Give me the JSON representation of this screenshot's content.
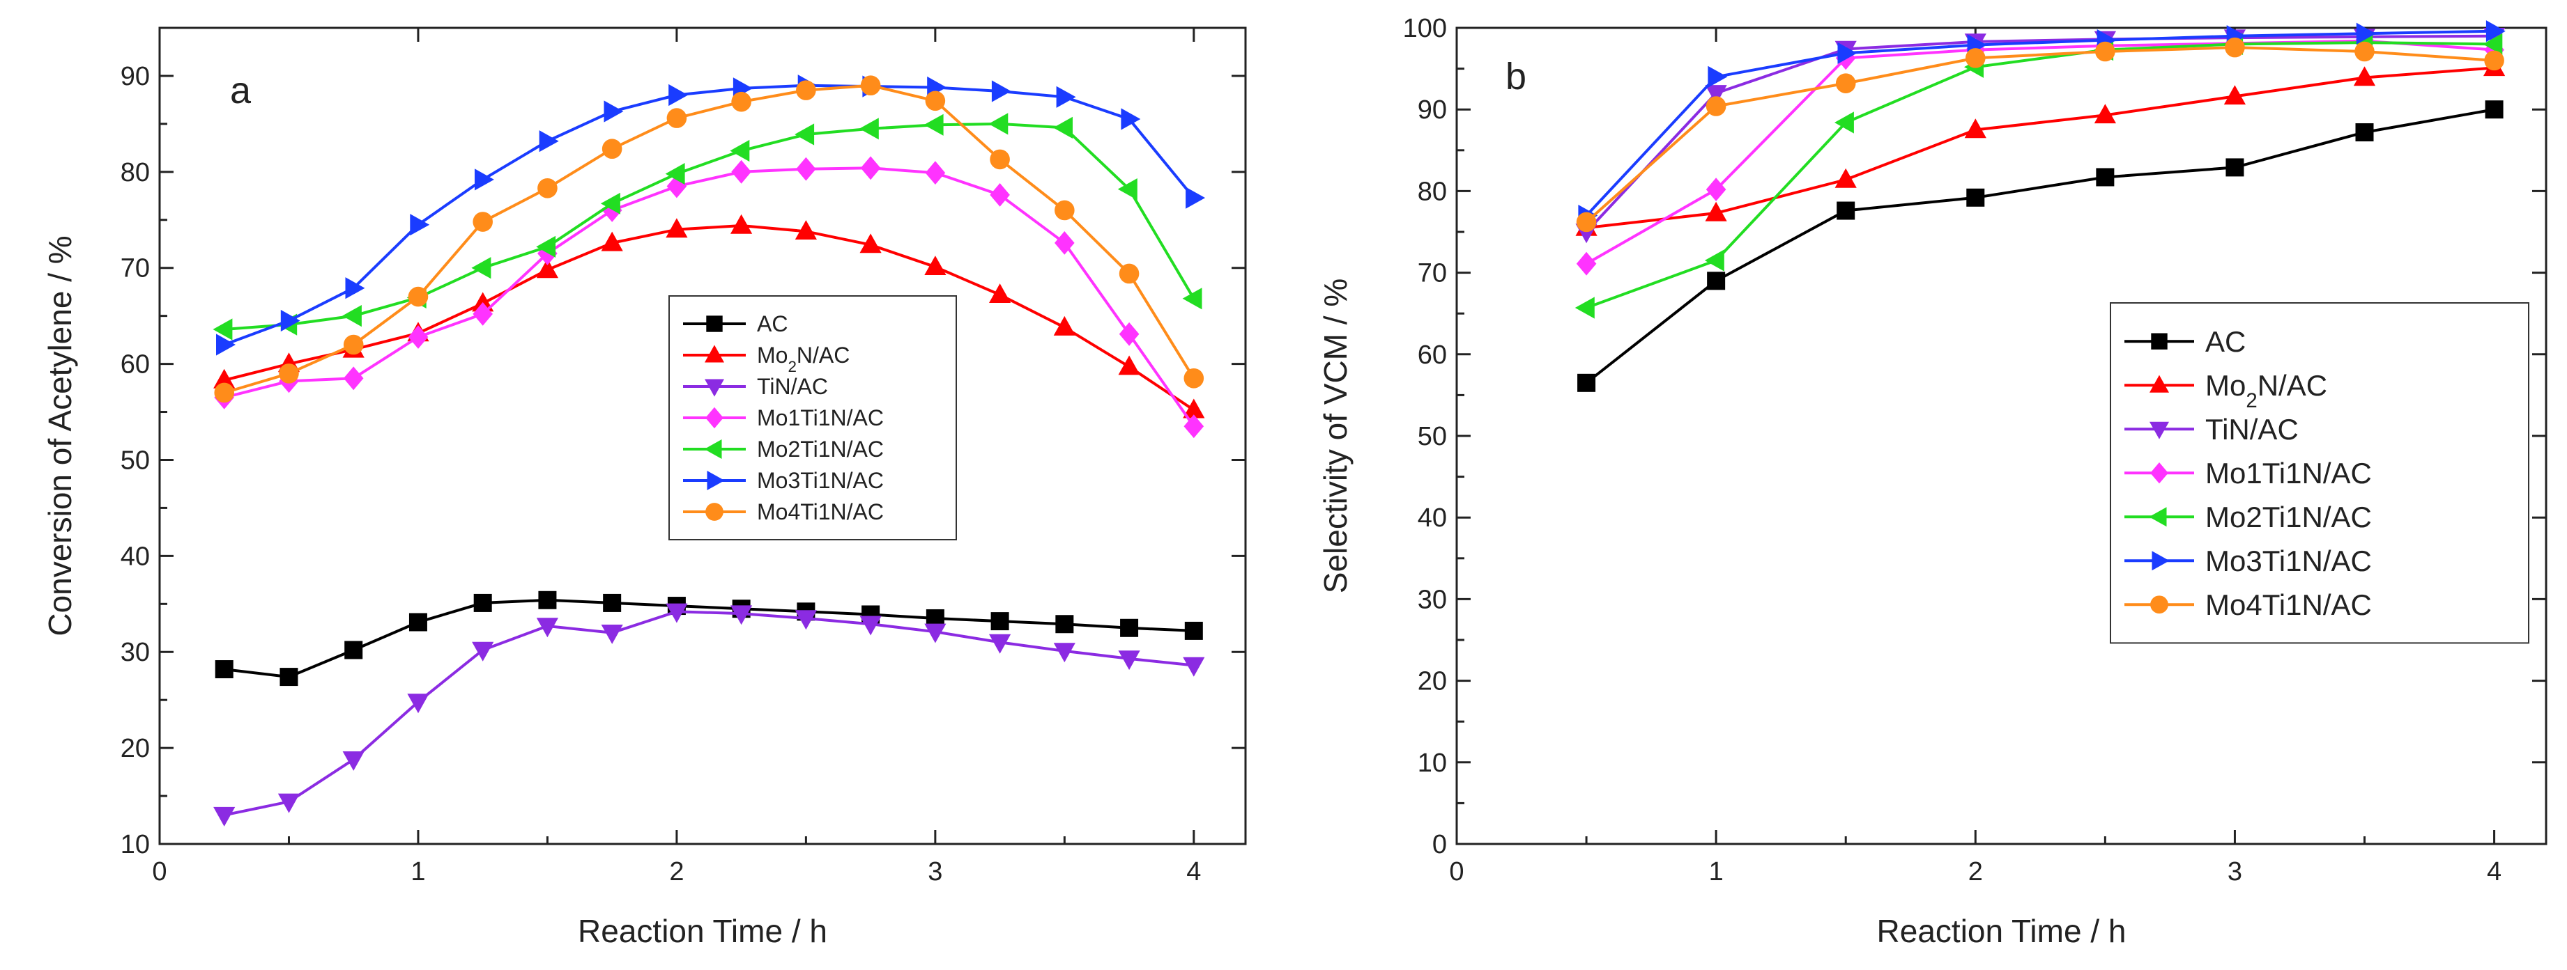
{
  "chart_data": [
    {
      "panel": "a",
      "type": "line",
      "title": "",
      "panel_label": "a",
      "xlabel": "Reaction Time / h",
      "ylabel": "Conversion of Acetylene / %",
      "xlim": [
        0,
        4.2
      ],
      "ylim": [
        10,
        95
      ],
      "xticks": [
        0,
        1,
        2,
        3,
        4
      ],
      "xtick_labels": [
        "0",
        "1",
        "2",
        "3",
        "4"
      ],
      "yticks": [
        10,
        20,
        30,
        40,
        50,
        60,
        70,
        80,
        90
      ],
      "ytick_labels": [
        "10",
        "20",
        "30",
        "40",
        "50",
        "60",
        "70",
        "80",
        "90"
      ],
      "legend_position": "center-right",
      "x": [
        0.25,
        0.5,
        0.75,
        1.0,
        1.25,
        1.5,
        1.75,
        2.0,
        2.25,
        2.5,
        2.75,
        3.0,
        3.25,
        3.5,
        3.75,
        4.0
      ],
      "series": [
        {
          "name": "AC",
          "color": "#000000",
          "marker": "square",
          "values": [
            28.2,
            27.4,
            30.2,
            33.1,
            35.1,
            35.4,
            35.1,
            34.8,
            34.5,
            34.2,
            33.9,
            33.5,
            33.2,
            32.9,
            32.5,
            32.2
          ]
        },
        {
          "name": "Mo2N/AC",
          "color": "#ff0000",
          "marker": "triangle-up",
          "values": [
            58.3,
            60.0,
            61.5,
            63.2,
            66.3,
            69.8,
            72.6,
            74.0,
            74.4,
            73.8,
            72.4,
            70.1,
            67.2,
            63.8,
            59.7,
            55.2
          ]
        },
        {
          "name": "TiN/AC",
          "color": "#8b2be2",
          "marker": "triangle-down",
          "values": [
            13.0,
            14.4,
            18.8,
            24.8,
            30.2,
            32.7,
            32.0,
            34.2,
            34.0,
            33.5,
            32.9,
            32.1,
            31.0,
            30.1,
            29.3,
            28.6
          ]
        },
        {
          "name": "Mo1Ti1N/AC",
          "color": "#ff33ff",
          "marker": "diamond",
          "values": [
            56.5,
            58.2,
            58.5,
            62.8,
            65.2,
            71.5,
            76.0,
            78.5,
            80.0,
            80.3,
            80.4,
            79.9,
            77.6,
            72.6,
            63.1,
            53.5
          ]
        },
        {
          "name": "Mo2Ti1N/AC",
          "color": "#22dd22",
          "marker": "triangle-left",
          "values": [
            63.6,
            64.1,
            65.0,
            66.9,
            70.0,
            72.2,
            76.7,
            79.8,
            82.2,
            83.9,
            84.5,
            84.9,
            85.0,
            84.6,
            78.2,
            66.8
          ]
        },
        {
          "name": "Mo3Ti1N/AC",
          "color": "#1a3cff",
          "marker": "triangle-right",
          "values": [
            62.0,
            64.5,
            67.9,
            74.5,
            79.2,
            83.2,
            86.3,
            88.0,
            88.7,
            89.0,
            88.9,
            88.8,
            88.4,
            87.8,
            85.5,
            77.3
          ]
        },
        {
          "name": "Mo4Ti1N/AC",
          "color": "#ff8c1a",
          "marker": "circle",
          "values": [
            57.0,
            59.0,
            62.0,
            67.0,
            74.8,
            78.3,
            82.4,
            85.6,
            87.3,
            88.5,
            89.0,
            87.4,
            81.3,
            76.0,
            69.4,
            58.5
          ]
        }
      ]
    },
    {
      "panel": "b",
      "type": "line",
      "title": "",
      "panel_label": "b",
      "xlabel": "Reaction Time / h",
      "ylabel": "Selectivity of VCM / %",
      "xlim": [
        0,
        4.2
      ],
      "ylim": [
        0,
        100
      ],
      "xticks": [
        0,
        1,
        2,
        3,
        4
      ],
      "xtick_labels": [
        "0",
        "1",
        "2",
        "3",
        "4"
      ],
      "yticks": [
        0,
        10,
        20,
        30,
        40,
        50,
        60,
        70,
        80,
        90,
        100
      ],
      "ytick_labels": [
        "0",
        "10",
        "20",
        "30",
        "40",
        "50",
        "60",
        "70",
        "80",
        "90",
        "100"
      ],
      "legend_position": "center-right",
      "x": [
        0.5,
        1.0,
        1.5,
        2.0,
        2.5,
        3.0,
        3.5,
        4.0
      ],
      "series": [
        {
          "name": "AC",
          "color": "#000000",
          "marker": "square",
          "values": [
            56.5,
            69.0,
            77.6,
            79.2,
            81.7,
            82.9,
            87.2,
            90.0
          ]
        },
        {
          "name": "Mo2N/AC",
          "color": "#ff0000",
          "marker": "triangle-up",
          "values": [
            75.5,
            77.3,
            81.4,
            87.5,
            89.3,
            91.6,
            93.9,
            95.1
          ]
        },
        {
          "name": "TiN/AC",
          "color": "#8b2be2",
          "marker": "triangle-down",
          "values": [
            75.0,
            92.0,
            97.4,
            98.3,
            98.6,
            98.8,
            98.9,
            99.0
          ]
        },
        {
          "name": "Mo1Ti1N/AC",
          "color": "#ff33ff",
          "marker": "diamond",
          "values": [
            71.1,
            80.2,
            96.3,
            97.3,
            97.8,
            98.1,
            98.4,
            97.3
          ]
        },
        {
          "name": "Mo2Ti1N/AC",
          "color": "#22dd22",
          "marker": "triangle-left",
          "values": [
            65.7,
            71.5,
            88.4,
            95.2,
            97.3,
            98.0,
            98.2,
            98.0
          ]
        },
        {
          "name": "Mo3Ti1N/AC",
          "color": "#1a3cff",
          "marker": "triangle-right",
          "values": [
            77.0,
            94.0,
            96.9,
            97.9,
            98.5,
            99.0,
            99.3,
            99.6
          ]
        },
        {
          "name": "Mo4Ti1N/AC",
          "color": "#ff8c1a",
          "marker": "circle",
          "values": [
            76.2,
            90.4,
            93.2,
            96.3,
            97.1,
            97.6,
            97.1,
            96.0
          ]
        }
      ]
    }
  ]
}
